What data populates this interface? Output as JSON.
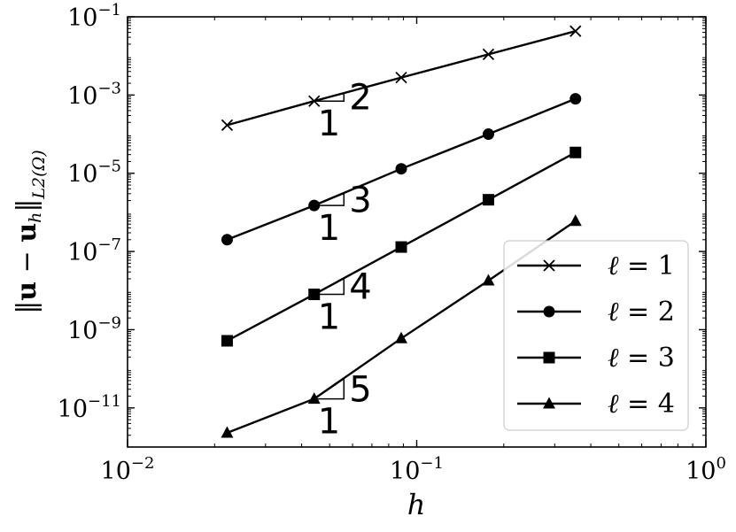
{
  "chart_data": {
    "type": "line",
    "xscale": "log",
    "yscale": "log",
    "xlim": [
      0.01,
      1.0
    ],
    "ylim": [
      1e-12,
      0.1
    ],
    "x_ticks": [
      {
        "value": 0.01,
        "base": "10",
        "exp": "−2"
      },
      {
        "value": 0.1,
        "base": "10",
        "exp": "−1"
      },
      {
        "value": 1.0,
        "base": "10",
        "exp": "0"
      }
    ],
    "y_ticks": [
      {
        "value": 0.1,
        "base": "10",
        "exp": "−1"
      },
      {
        "value": 0.001,
        "base": "10",
        "exp": "−3"
      },
      {
        "value": 1e-05,
        "base": "10",
        "exp": "−5"
      },
      {
        "value": 1e-07,
        "base": "10",
        "exp": "−7"
      },
      {
        "value": 1e-09,
        "base": "10",
        "exp": "−9"
      },
      {
        "value": 1e-11,
        "base": "10",
        "exp": "−11"
      }
    ],
    "xlabel": "h",
    "ylabel": "‖u − uh‖L2(Ω)",
    "ylabel_parts": {
      "norm_left": "‖",
      "u1": "u",
      "minus": " − ",
      "u2": "u",
      "sub_h": "h",
      "norm_right": "‖",
      "sub": "L2(Ω)"
    },
    "x": [
      0.0221,
      0.0442,
      0.0884,
      0.177,
      0.354
    ],
    "series": [
      {
        "name": "ℓ = 1",
        "ell": "ℓ",
        "eq": " = 1",
        "marker": "x",
        "values": [
          0.00017,
          0.0007,
          0.0028,
          0.011,
          0.043
        ]
      },
      {
        "name": "ℓ = 2",
        "ell": "ℓ",
        "eq": " = 2",
        "marker": "circle",
        "values": [
          2e-07,
          1.5e-06,
          1.3e-05,
          0.0001,
          0.0008
        ]
      },
      {
        "name": "ℓ = 3",
        "ell": "ℓ",
        "eq": " = 3",
        "marker": "square",
        "values": [
          5.2e-10,
          8e-09,
          1.3e-07,
          2.1e-06,
          3.4e-05
        ]
      },
      {
        "name": "ℓ = 4",
        "ell": "ℓ",
        "eq": " = 4",
        "marker": "triangle",
        "values": [
          2.3e-12,
          1.7e-11,
          6e-10,
          1.8e-08,
          6e-07
        ]
      }
    ],
    "slope_triangles": [
      {
        "series": 0,
        "x_start": 0.0442,
        "x_end": 0.056,
        "rise_label": "2",
        "run_label": "1"
      },
      {
        "series": 1,
        "x_start": 0.0442,
        "x_end": 0.056,
        "rise_label": "3",
        "run_label": "1"
      },
      {
        "series": 2,
        "x_start": 0.0442,
        "x_end": 0.056,
        "rise_label": "4",
        "run_label": "1"
      },
      {
        "series": 3,
        "x_start": 0.0442,
        "x_end": 0.056,
        "rise_label": "5",
        "run_label": "1"
      }
    ],
    "grid": false,
    "legend_position": "bottom-right"
  }
}
